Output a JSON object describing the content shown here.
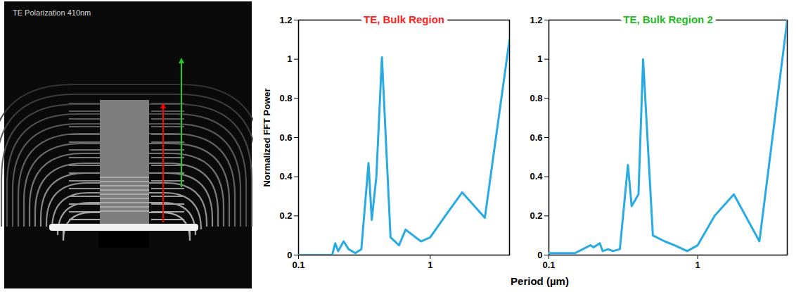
{
  "image_label": "TE Polarization 410nm",
  "chart_data": [
    {
      "type": "line",
      "title": "TE, Bulk Region",
      "xlabel": "Period (µm)",
      "ylabel": "Normalized FFT Power",
      "log": "x",
      "xlim": [
        0.1,
        4
      ],
      "xticks": [
        0.1,
        1
      ],
      "ylim": [
        0,
        1.2
      ],
      "yticks": [
        0,
        0.2,
        0.4,
        0.6,
        0.8,
        1,
        1.2
      ],
      "color": "#29abe2",
      "grid": false,
      "x": [
        0.1,
        0.15,
        0.18,
        0.19,
        0.2,
        0.22,
        0.24,
        0.27,
        0.3,
        0.34,
        0.36,
        0.39,
        0.43,
        0.5,
        0.58,
        0.65,
        0.85,
        1.0,
        1.3,
        1.75,
        2.6,
        4.0
      ],
      "values": [
        0.0,
        0.0,
        0.0,
        0.06,
        0.02,
        0.07,
        0.03,
        0.01,
        0.03,
        0.47,
        0.18,
        0.4,
        1.01,
        0.09,
        0.05,
        0.13,
        0.07,
        0.09,
        0.2,
        0.32,
        0.19,
        1.1
      ]
    },
    {
      "type": "line",
      "title": "TE, Bulk Region 2",
      "log": "x",
      "xlim": [
        0.1,
        4
      ],
      "xticks": [
        0.1,
        1
      ],
      "ylim": [
        0,
        1.2
      ],
      "yticks": [
        0,
        0.2,
        0.4,
        0.6,
        0.8,
        1,
        1.2
      ],
      "color": "#29abe2",
      "grid": false,
      "x": [
        0.1,
        0.15,
        0.19,
        0.2,
        0.22,
        0.23,
        0.25,
        0.27,
        0.3,
        0.34,
        0.36,
        0.4,
        0.43,
        0.5,
        0.6,
        0.7,
        0.85,
        1.0,
        1.3,
        1.75,
        2.6,
        4.0
      ],
      "values": [
        0.01,
        0.01,
        0.05,
        0.04,
        0.06,
        0.02,
        0.03,
        0.02,
        0.03,
        0.46,
        0.25,
        0.31,
        1.0,
        0.1,
        0.07,
        0.05,
        0.02,
        0.05,
        0.2,
        0.31,
        0.07,
        1.2
      ]
    }
  ]
}
